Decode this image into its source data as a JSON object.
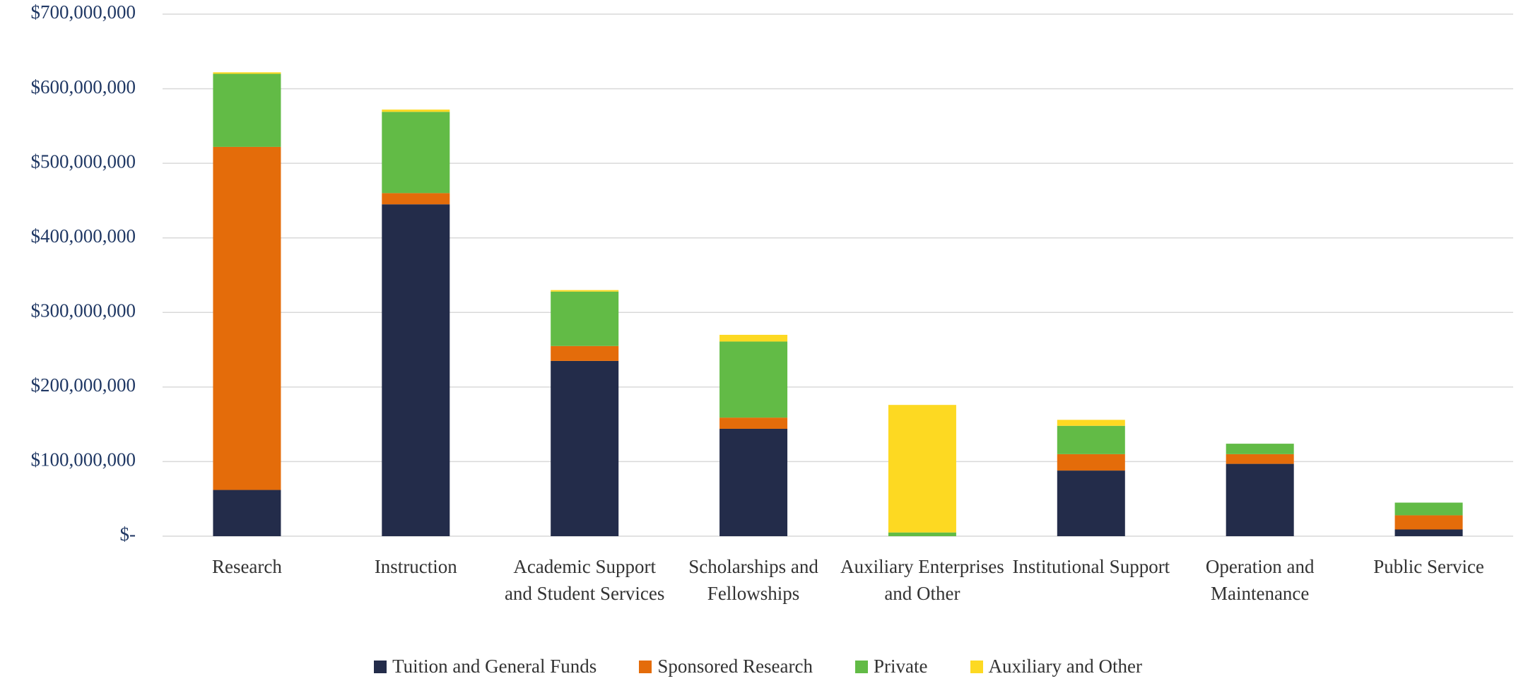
{
  "chart_data": {
    "type": "stacked_bar",
    "categories": [
      "Research",
      "Instruction",
      "Academic Support and Student Services",
      "Scholarships and Fellowships",
      "Auxiliary Enterprises and Other",
      "Institutional Support",
      "Operation and Maintenance",
      "Public Service"
    ],
    "series": [
      {
        "name": "Tuition and General Funds",
        "color": "#232c4a",
        "values": [
          62000000,
          445000000,
          235000000,
          144000000,
          0,
          88000000,
          97000000,
          9000000
        ]
      },
      {
        "name": "Sponsored Research",
        "color": "#e46c0a",
        "values": [
          460000000,
          15000000,
          20000000,
          15000000,
          0,
          22000000,
          13000000,
          19000000
        ]
      },
      {
        "name": "Private",
        "color": "#62bb46",
        "values": [
          98000000,
          109000000,
          73000000,
          102000000,
          5000000,
          38000000,
          14000000,
          17000000
        ]
      },
      {
        "name": "Auxiliary and Other",
        "color": "#fdd922",
        "values": [
          2000000,
          3000000,
          2000000,
          9000000,
          171000000,
          8000000,
          0,
          0
        ]
      }
    ],
    "ylim": [
      0,
      700000000
    ],
    "yticks": [
      {
        "value": 0,
        "label": "$-"
      },
      {
        "value": 100000000,
        "label": "$100,000,000"
      },
      {
        "value": 200000000,
        "label": "$200,000,000"
      },
      {
        "value": 300000000,
        "label": "$300,000,000"
      },
      {
        "value": 400000000,
        "label": "$400,000,000"
      },
      {
        "value": 500000000,
        "label": "$500,000,000"
      },
      {
        "value": 600000000,
        "label": "$600,000,000"
      },
      {
        "value": 700000000,
        "label": "$700,000,000"
      }
    ],
    "grid": true,
    "legend": "bottom"
  }
}
